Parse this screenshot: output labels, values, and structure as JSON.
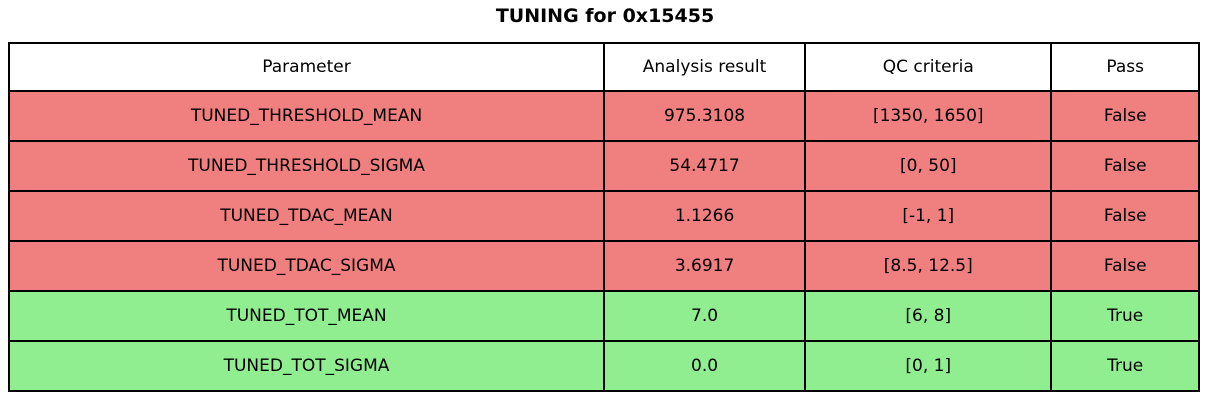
{
  "title": "TUNING for 0x15455",
  "colors": {
    "fail": "#F08080",
    "pass": "#90EE90",
    "header_bg": "#FFFFFF",
    "border": "#000000"
  },
  "chart_data": {
    "type": "table",
    "columns": [
      "Parameter",
      "Analysis result",
      "QC criteria",
      "Pass"
    ],
    "rows": [
      {
        "status": "fail",
        "cells": [
          "TUNED_THRESHOLD_MEAN",
          "975.3108",
          "[1350, 1650]",
          "False"
        ]
      },
      {
        "status": "fail",
        "cells": [
          "TUNED_THRESHOLD_SIGMA",
          "54.4717",
          "[0, 50]",
          "False"
        ]
      },
      {
        "status": "fail",
        "cells": [
          "TUNED_TDAC_MEAN",
          "1.1266",
          "[-1, 1]",
          "False"
        ]
      },
      {
        "status": "fail",
        "cells": [
          "TUNED_TDAC_SIGMA",
          "3.6917",
          "[8.5, 12.5]",
          "False"
        ]
      },
      {
        "status": "pass",
        "cells": [
          "TUNED_TOT_MEAN",
          "7.0",
          "[6, 8]",
          "True"
        ]
      },
      {
        "status": "pass",
        "cells": [
          "TUNED_TOT_SIGMA",
          "0.0",
          "[0, 1]",
          "True"
        ]
      }
    ]
  }
}
